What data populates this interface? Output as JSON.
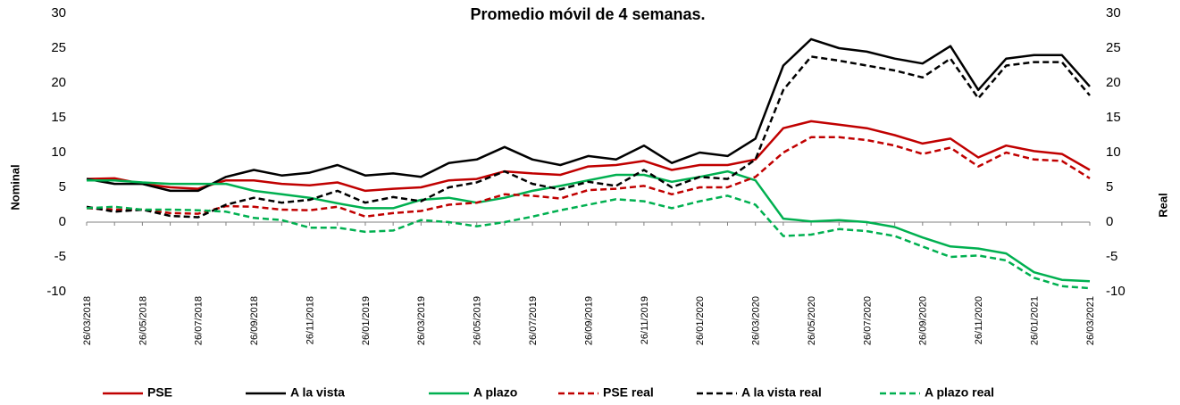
{
  "chart_data": {
    "type": "line",
    "title": "Promedio móvil de 4 semanas.",
    "y_label": "Nominal",
    "y2_label": "Real",
    "categories": [
      "26/03/2018",
      null,
      "26/05/2018",
      null,
      "26/07/2018",
      null,
      "26/09/2018",
      null,
      "26/11/2018",
      null,
      "26/01/2019",
      null,
      "26/03/2019",
      null,
      "26/05/2019",
      null,
      "26/07/2019",
      null,
      "26/09/2019",
      null,
      "26/11/2019",
      null,
      "26/01/2020",
      null,
      "26/03/2020",
      null,
      "26/05/2020",
      null,
      "26/07/2020",
      null,
      "26/09/2020",
      null,
      "26/11/2020",
      null,
      "26/01/2021",
      null,
      "26/03/2021"
    ],
    "ylim": [
      -10,
      30
    ],
    "yticks": [
      -10,
      -5,
      0,
      5,
      10,
      15,
      20,
      25,
      30
    ],
    "y2lim": [
      -10,
      30
    ],
    "y2ticks": [
      -10,
      -5,
      0,
      5,
      10,
      15,
      20,
      25,
      30
    ],
    "legend": "bottom",
    "series": [
      {
        "name": "PSE",
        "color": "#c00000",
        "dashed": false,
        "values": [
          6.2,
          6.3,
          5.5,
          5,
          4.8,
          6,
          6,
          5.5,
          5.3,
          5.7,
          4.5,
          4.8,
          5,
          6,
          6.2,
          7.3,
          7,
          6.8,
          8,
          8.2,
          8.8,
          7.5,
          8.2,
          8.2,
          9,
          13.5,
          14.5,
          14,
          13.5,
          12.5,
          11.3,
          12,
          9.3,
          11,
          10.2,
          9.8,
          7.5
        ]
      },
      {
        "name": "A la vista",
        "color": "#000000",
        "dashed": false,
        "values": [
          6.2,
          5.5,
          5.5,
          4.5,
          4.5,
          6.5,
          7.5,
          6.7,
          7.1,
          8.2,
          6.7,
          7,
          6.5,
          8.5,
          9,
          10.8,
          9,
          8.2,
          9.5,
          9,
          11,
          8.5,
          10,
          9.5,
          12,
          22.5,
          26.3,
          25,
          24.5,
          23.5,
          22.8,
          25.3,
          19,
          23.5,
          24,
          24,
          19.5
        ]
      },
      {
        "name": "A plazo",
        "color": "#00b050",
        "dashed": false,
        "values": [
          6,
          6,
          5.7,
          5.5,
          5.5,
          5.5,
          4.5,
          4,
          3.5,
          2.7,
          2,
          2,
          3.2,
          3.5,
          2.8,
          3.5,
          4.5,
          5.2,
          6,
          6.8,
          6.8,
          5.8,
          6.5,
          7.3,
          6,
          0.5,
          0.1,
          0.3,
          0,
          -0.7,
          -2.2,
          -3.5,
          -3.8,
          -4.5,
          -7.2,
          -8.3,
          -8.5
        ]
      },
      {
        "name": "PSE real",
        "color": "#c00000",
        "dashed": true,
        "axis": "y2",
        "values": [
          2,
          1.8,
          1.8,
          1.3,
          1.2,
          2.3,
          2.2,
          1.8,
          1.7,
          2.2,
          0.8,
          1.3,
          1.6,
          2.5,
          2.8,
          4,
          3.8,
          3.4,
          4.6,
          4.8,
          5.2,
          4,
          5,
          5,
          6.5,
          10,
          12.2,
          12.2,
          11.8,
          11,
          9.8,
          10.7,
          8,
          10,
          9,
          8.8,
          6.3
        ]
      },
      {
        "name": "A la vista real",
        "color": "#000000",
        "dashed": true,
        "axis": "y2",
        "values": [
          2.2,
          1.5,
          1.8,
          0.9,
          0.7,
          2.5,
          3.5,
          2.8,
          3.2,
          4.5,
          2.8,
          3.6,
          3,
          5,
          5.7,
          7.3,
          5.5,
          4.7,
          5.8,
          5.2,
          7.5,
          5,
          6.5,
          6.2,
          9,
          19,
          23.8,
          23.2,
          22.5,
          21.8,
          20.8,
          23.5,
          17.8,
          22.5,
          23,
          23,
          18.2
        ]
      },
      {
        "name": "A plazo real",
        "color": "#00b050",
        "dashed": true,
        "axis": "y2",
        "values": [
          2,
          2.2,
          1.8,
          1.8,
          1.7,
          1.5,
          0.6,
          0.3,
          -0.8,
          -0.8,
          -1.4,
          -1.2,
          0.3,
          0,
          -0.6,
          0,
          0.8,
          1.7,
          2.5,
          3.3,
          3,
          2,
          3,
          3.8,
          2.5,
          -2,
          -1.8,
          -1,
          -1.3,
          -2,
          -3.5,
          -5,
          -4.8,
          -5.5,
          -8,
          -9.2,
          -9.5
        ]
      }
    ]
  }
}
